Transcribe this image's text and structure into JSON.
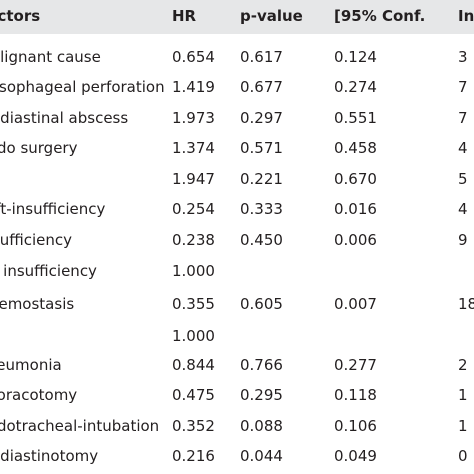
{
  "header": {
    "factor": "Factors",
    "hr": "HR",
    "p": "p-value",
    "lo": "[95% Conf.",
    "hi": "Int"
  },
  "rows": [
    {
      "factor": "Malignant cause",
      "hr": "0.654",
      "p": "0.617",
      "lo": "0.124",
      "hi": "3"
    },
    {
      "factor": "Oesophageal perforation",
      "hr": "1.419",
      "p": "0.677",
      "lo": "0.274",
      "hi": "7"
    },
    {
      "factor": "Mediastinal abscess",
      "hr": "1.973",
      "p": "0.297",
      "lo": "0.551",
      "hi": "7"
    },
    {
      "factor": "Redo surgery",
      "hr": "1.374",
      "p": "0.571",
      "lo": "0.458",
      "hi": "4"
    },
    {
      "factor": "",
      "hr": "1.947",
      "p": "0.221",
      "lo": "0.670",
      "hi": "5"
    },
    {
      "factor": "Left-insufficiency",
      "hr": "0.254",
      "p": "0.333",
      "lo": "0.016",
      "hi": "4"
    },
    {
      "factor": "Insufficiency",
      "hr": "0.238",
      "p": "0.450",
      "lo": "0.006",
      "hi": "9"
    },
    {
      "factor": "No insufficiency",
      "hr": "1.000",
      "p": "",
      "lo": "",
      "hi": ""
    },
    {
      "factor": "Haemostasis",
      "hr": "0.355",
      "p": "0.605",
      "lo": "0.007",
      "hi": "18"
    },
    {
      "factor": "",
      "hr": "1.000",
      "p": "",
      "lo": "",
      "hi": ""
    },
    {
      "factor": "Pneumonia",
      "hr": "0.844",
      "p": "0.766",
      "lo": "0.277",
      "hi": "2"
    },
    {
      "factor": "Thoracotomy",
      "hr": "0.475",
      "p": "0.295",
      "lo": "0.118",
      "hi": "1"
    },
    {
      "factor": "Endotracheal-intubation",
      "hr": "0.352",
      "p": "0.088",
      "lo": "0.106",
      "hi": "1"
    },
    {
      "factor": "Mediastinotomy",
      "hr": "0.216",
      "p": "0.044",
      "lo": "0.049",
      "hi": "0"
    }
  ]
}
